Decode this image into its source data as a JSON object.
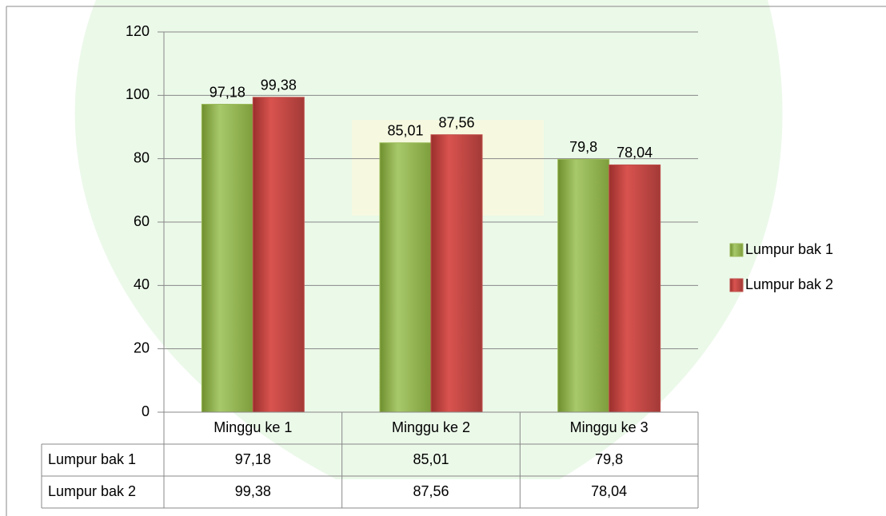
{
  "chart_data": {
    "type": "bar",
    "categories": [
      "Minggu ke 1",
      "Minggu ke 2",
      "Minggu ke 3"
    ],
    "series": [
      {
        "name": "Lumpur bak 1",
        "color": "#9bbb59",
        "values": [
          97.18,
          85.01,
          79.8
        ],
        "value_labels": [
          "97,18",
          "85,01",
          "79,8"
        ]
      },
      {
        "name": "Lumpur bak 2",
        "color": "#c0504d",
        "values": [
          99.38,
          87.56,
          78.04
        ],
        "value_labels": [
          "99,38",
          "87,56",
          "78,04"
        ]
      }
    ],
    "ylim": [
      0,
      120
    ],
    "yticks": [
      0,
      20,
      40,
      60,
      80,
      100,
      120
    ],
    "grid": true,
    "legend": "right",
    "data_table": true
  }
}
